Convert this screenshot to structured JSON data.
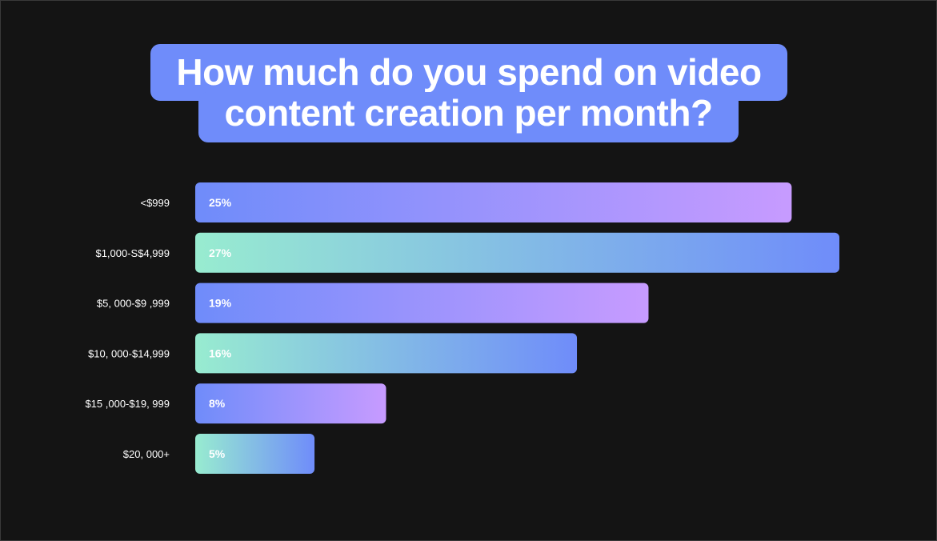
{
  "title_lines": [
    "How much do you spend on video",
    "content creation per month?"
  ],
  "colors": {
    "background": "#141414",
    "title_box": "#6f8cfa",
    "gradient_blue_purple": [
      "#6f8cfa",
      "#c79bff"
    ],
    "gradient_mint_blue": [
      "#98ecd0",
      "#6f8cfa"
    ]
  },
  "chart_data": {
    "type": "bar",
    "orientation": "horizontal",
    "title": "How much do you spend on video content creation per month?",
    "categories": [
      "<$999",
      "$1,000-S$4,999",
      "$5, 000-$9 ,999",
      "$10, 000-$14,999",
      "$15 ,000-$19, 999",
      "$20, 000+"
    ],
    "values": [
      25,
      27,
      19,
      16,
      8,
      5
    ],
    "value_labels": [
      "25%",
      "27%",
      "19%",
      "16%",
      "8%",
      "5%"
    ],
    "bar_styles": [
      "blue-purple",
      "mint-blue",
      "blue-purple",
      "mint-blue",
      "blue-purple",
      "mint-blue"
    ],
    "unit": "%",
    "xlim": [
      0,
      27
    ],
    "grid": false,
    "legend": "none"
  }
}
